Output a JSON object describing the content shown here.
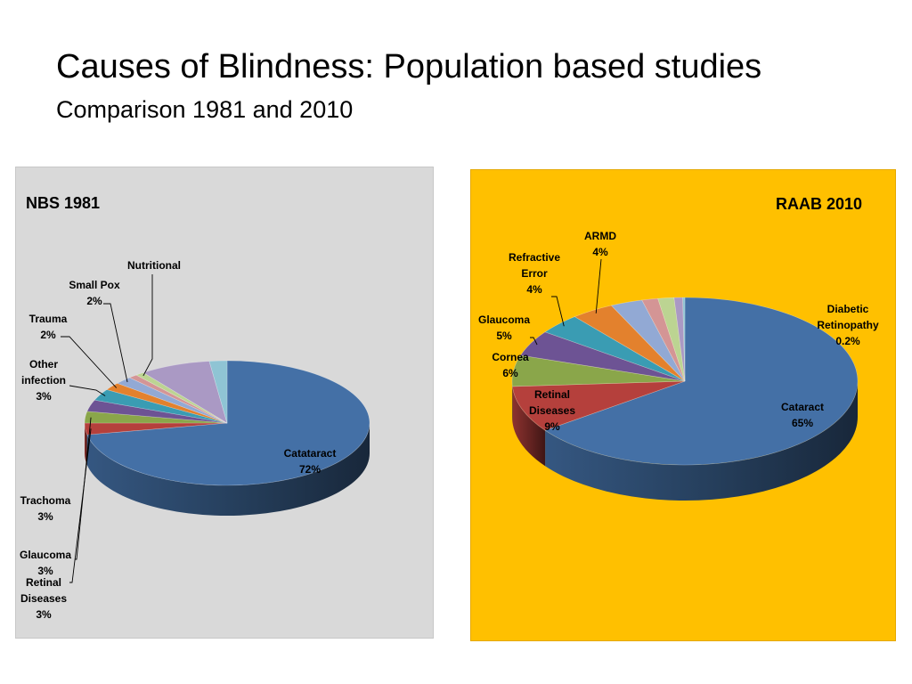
{
  "slide": {
    "title": "Causes of Blindness: Population based studies",
    "subtitle": "Comparison 1981 and 2010"
  },
  "chart_data": [
    {
      "type": "pie",
      "title": "NBS 1981",
      "background": "#d9d9d9",
      "slices": [
        {
          "name": "Catataract",
          "value": 72,
          "label": [
            "Catataract",
            "72%"
          ],
          "color": "#4470a6"
        },
        {
          "name": "Retinal Diseases",
          "value": 3,
          "label": [
            "Retinal",
            "Diseases",
            "3%"
          ],
          "color": "#b5403c"
        },
        {
          "name": "Glaucoma",
          "value": 3,
          "label": [
            "Glaucoma",
            "3%"
          ],
          "color": "#8aa64a"
        },
        {
          "name": "Trachoma",
          "value": 3,
          "label": [
            "Trachoma",
            "3%"
          ],
          "color": "#6d5394"
        },
        {
          "name": "Other infection",
          "value": 3,
          "label": [
            "Other",
            "infection",
            "3%"
          ],
          "color": "#3a9cb3"
        },
        {
          "name": "Trauma",
          "value": 2,
          "label": [
            "Trauma",
            "2%"
          ],
          "color": "#e3812d"
        },
        {
          "name": "Small Pox",
          "value": 2,
          "label": [
            "Small Pox",
            "2%"
          ],
          "color": "#92a9d4"
        },
        {
          "name": "unlabeled-1",
          "value": 1,
          "label": [],
          "color": "#d49595"
        },
        {
          "name": "Nutritional",
          "value": 1,
          "label": [
            "Nutritional"
          ],
          "color": "#bcd492"
        },
        {
          "name": "unlabeled-2",
          "value": 8,
          "label": [],
          "color": "#aa99c4"
        },
        {
          "name": "unlabeled-3",
          "value": 2,
          "label": [],
          "color": "#8fc4d4"
        }
      ]
    },
    {
      "type": "pie",
      "title": "RAAB 2010",
      "background": "#ffc000",
      "slices": [
        {
          "name": "Cataract",
          "value": 65,
          "label": [
            "Cataract",
            "65%"
          ],
          "color": "#4470a6"
        },
        {
          "name": "Retinal Diseases",
          "value": 9,
          "label": [
            "Retinal",
            "Diseases",
            "9%"
          ],
          "color": "#b5403c"
        },
        {
          "name": "Cornea",
          "value": 6,
          "label": [
            "Cornea",
            "6%"
          ],
          "color": "#8aa64a"
        },
        {
          "name": "Glaucoma",
          "value": 5,
          "label": [
            "Glaucoma",
            "5%"
          ],
          "color": "#6d5394"
        },
        {
          "name": "Refractive Error",
          "value": 4,
          "label": [
            "Refractive",
            "Error",
            "4%"
          ],
          "color": "#3a9cb3"
        },
        {
          "name": "ARMD",
          "value": 4,
          "label": [
            "ARMD",
            "4%"
          ],
          "color": "#e3812d"
        },
        {
          "name": "unlabeled-1",
          "value": 3,
          "label": [],
          "color": "#92a9d4"
        },
        {
          "name": "unlabeled-2",
          "value": 1.5,
          "label": [],
          "color": "#d49595"
        },
        {
          "name": "unlabeled-3",
          "value": 1.5,
          "label": [],
          "color": "#bcd492"
        },
        {
          "name": "unlabeled-4",
          "value": 0.8,
          "label": [],
          "color": "#aa99c4"
        },
        {
          "name": "Diabetic Retinopathy",
          "value": 0.2,
          "label": [
            "Diabetic",
            "Retinopathy",
            "0.2%"
          ],
          "color": "#8fc4d4"
        }
      ]
    }
  ]
}
